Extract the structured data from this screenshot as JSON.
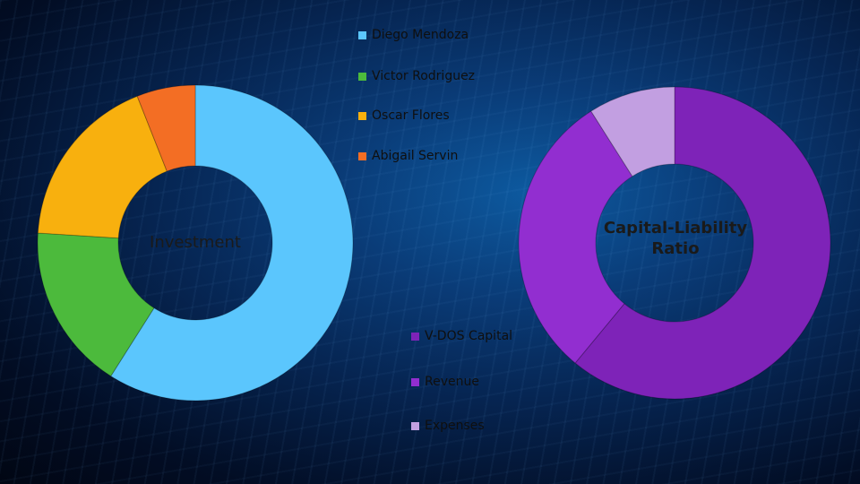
{
  "chart_data": [
    {
      "type": "pie",
      "variant": "donut",
      "center_label": "Investment",
      "categories": [
        "Diego Mendoza",
        "Victor Rodriguez",
        "Oscar Flores",
        "Abigail Servin"
      ],
      "values": [
        59,
        17,
        18,
        6
      ],
      "colors": [
        "#5bc6fd",
        "#4cba3c",
        "#f8b00e",
        "#f36e24"
      ],
      "legend_position": "top"
    },
    {
      "type": "pie",
      "variant": "donut",
      "center_label": "Capital-Liability Ratio",
      "categories": [
        "V-DOS Capital",
        "Revenue",
        "Expenses"
      ],
      "values": [
        61,
        30,
        9
      ],
      "colors": [
        "#7e23b8",
        "#922ed0",
        "#c29fe1"
      ],
      "legend_position": "bottom"
    }
  ]
}
